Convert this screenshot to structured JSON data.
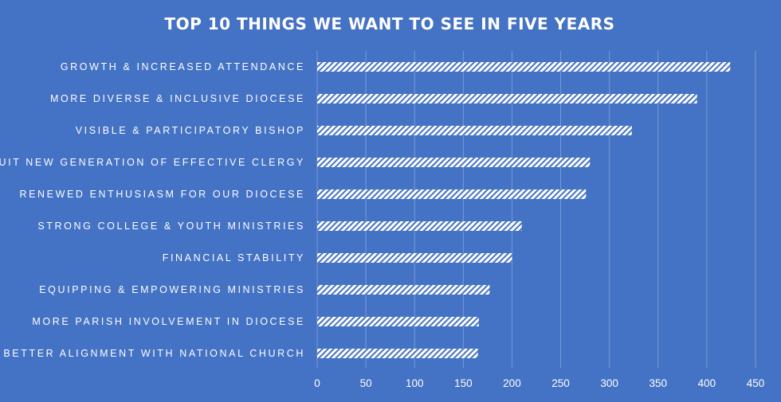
{
  "chart_data": {
    "type": "bar",
    "orientation": "horizontal",
    "title": "TOP 10 THINGS WE WANT TO SEE IN FIVE YEARS",
    "categories": [
      "GROWTH & INCREASED ATTENDANCE",
      "MORE DIVERSE & INCLUSIVE DIOCESE",
      "VISIBLE & PARTICIPATORY BISHOP",
      "RECRUIT NEW GENERATION OF EFFECTIVE CLERGY",
      "RENEWED ENTHUSIASM FOR OUR DIOCESE",
      "STRONG COLLEGE & YOUTH MINISTRIES",
      "FINANCIAL STABILITY",
      "EQUIPPING & EMPOWERING MINISTRIES",
      "MORE PARISH INVOLVEMENT IN DIOCESE",
      "BETTER ALIGNMENT WITH NATIONAL CHURCH"
    ],
    "values": [
      424,
      390,
      323,
      280,
      276,
      210,
      200,
      177,
      166,
      165
    ],
    "xlim": [
      0,
      450
    ],
    "xticks": [
      "0",
      "50",
      "100",
      "150",
      "200",
      "250",
      "300",
      "350",
      "400",
      "450"
    ],
    "xlabel": "",
    "ylabel": "",
    "grid": true,
    "colors": {
      "background": "#4472c4",
      "bar_fill": "#ffffff",
      "bar_pattern_bg": "#4472c4",
      "gridline": "#7a9bd6",
      "text": "#ffffff"
    }
  }
}
